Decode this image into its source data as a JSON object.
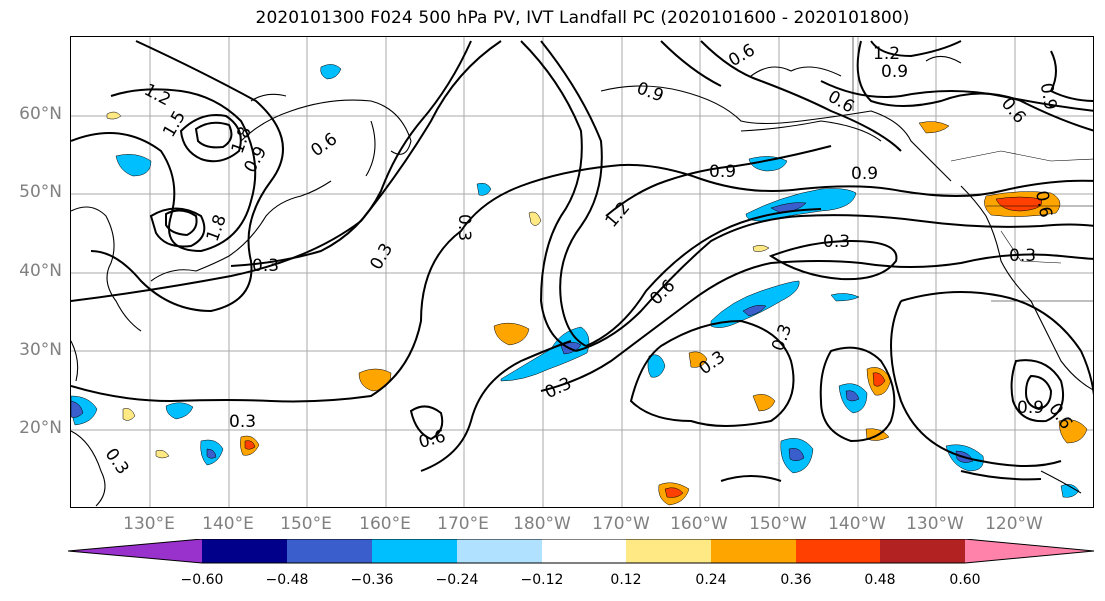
{
  "title": "2020101300 F024 500 hPa PV, IVT Landfall PC (2020101600 - 2020101800)",
  "lat_labels": [
    "60°N",
    "50°N",
    "40°N",
    "30°N",
    "20°N"
  ],
  "lon_labels": [
    "130°E",
    "140°E",
    "150°E",
    "160°E",
    "170°E",
    "180°W",
    "170°W",
    "160°W",
    "150°W",
    "140°W",
    "130°W",
    "120°W"
  ],
  "colorbar": {
    "tick_labels": [
      "−0.60",
      "−0.48",
      "−0.36",
      "−0.24",
      "−0.12",
      "0.12",
      "0.24",
      "0.36",
      "0.48",
      "0.60"
    ],
    "colors": [
      "#9932cc",
      "#00008b",
      "#3a5fcd",
      "#00bfff",
      "#b0e2ff",
      "#ffffff",
      "#ffe985",
      "#ffa500",
      "#ff4000",
      "#b22222",
      "#ff82ab"
    ]
  },
  "contour_labels": [
    "1.2",
    "1.5",
    "1.8",
    "0.9",
    "0.6",
    "1.8",
    "0.3",
    "0.3",
    "0.3",
    "1.2",
    "0.9",
    "0.6",
    "0.9",
    "0.9",
    "0.6",
    "0.3",
    "0.6",
    "0.3",
    "0.3",
    "0.3",
    "0.3",
    "0.6",
    "0.3",
    "0.3",
    "1.2",
    "0.9",
    "0.6",
    "0.6",
    "0.9",
    "0.9",
    "0.6"
  ]
}
